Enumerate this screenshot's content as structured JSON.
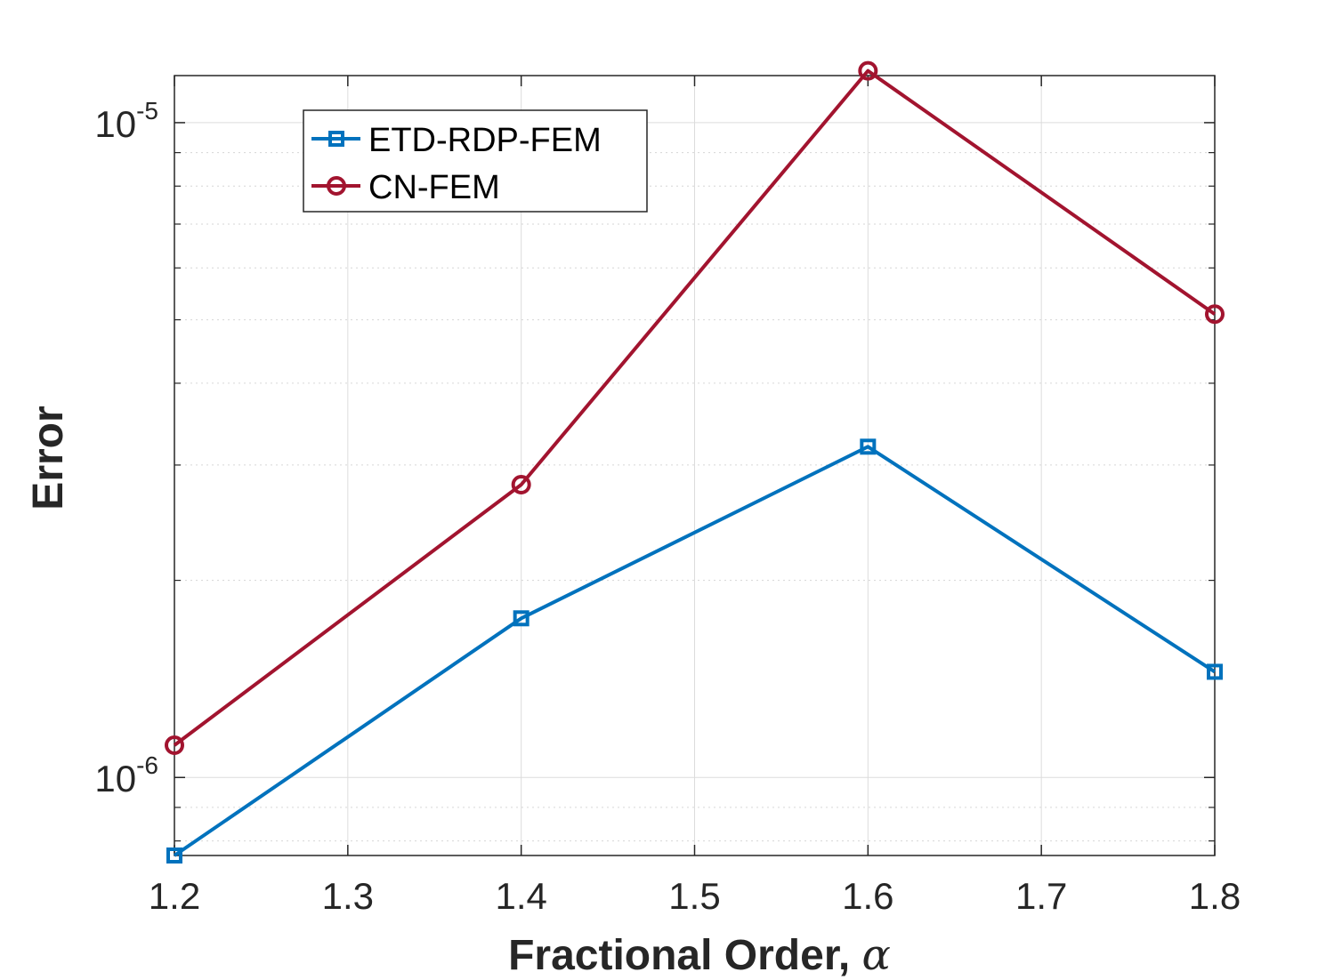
{
  "chart_data": {
    "type": "line",
    "xlabel": "Fractional Order, ",
    "xlabel_symbol": "α",
    "ylabel": "Error",
    "yscale": "log",
    "x": [
      1.2,
      1.4,
      1.6,
      1.8
    ],
    "xlim": [
      1.2,
      1.8
    ],
    "ylim": [
      7.6e-07,
      1.18e-05
    ],
    "xticks": [
      1.2,
      1.3,
      1.4,
      1.5,
      1.6,
      1.7,
      1.8
    ],
    "xtick_labels": [
      "1.2",
      "1.3",
      "1.4",
      "1.5",
      "1.6",
      "1.7",
      "1.8"
    ],
    "yticks": [
      {
        "value": 1e-06,
        "base": "10",
        "exp": "-6"
      },
      {
        "value": 1e-05,
        "base": "10",
        "exp": "-5"
      }
    ],
    "grid": true,
    "legend_position": "top-left",
    "series": [
      {
        "name": "ETD-RDP-FEM",
        "color": "#0072BD",
        "marker": "square",
        "values": [
          7.6e-07,
          1.75e-06,
          3.2e-06,
          1.45e-06
        ]
      },
      {
        "name": "CN-FEM",
        "color": "#A2142F",
        "marker": "circle",
        "values": [
          1.12e-06,
          2.8e-06,
          1.2e-05,
          5.1e-06
        ]
      }
    ]
  }
}
